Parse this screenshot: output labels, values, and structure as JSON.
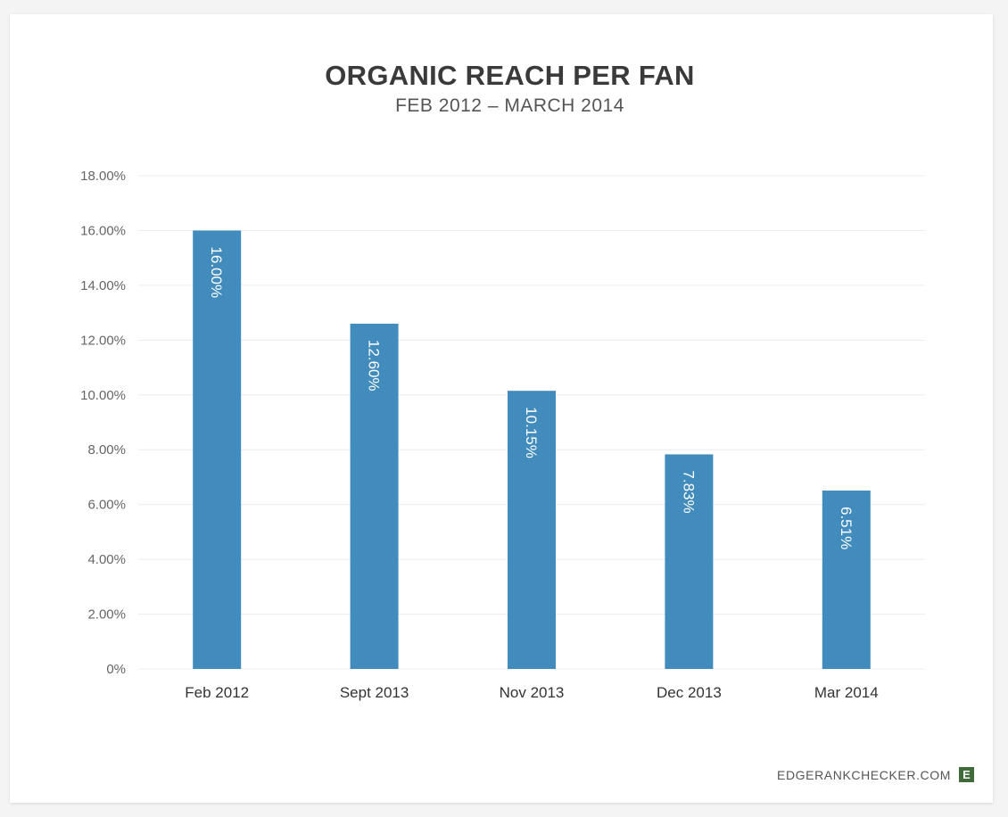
{
  "chart_data": {
    "type": "bar",
    "title": "ORGANIC REACH PER FAN",
    "subtitle": "FEB 2012 – MARCH 2014",
    "categories": [
      "Feb 2012",
      "Sept 2013",
      "Nov 2013",
      "Dec 2013",
      "Mar 2014"
    ],
    "values": [
      16.0,
      12.6,
      10.15,
      7.83,
      6.51
    ],
    "data_labels": [
      "16.00%",
      "12.60%",
      "10.15%",
      "7.83%",
      "6.51%"
    ],
    "ylim": [
      0,
      18
    ],
    "yticks": [
      0,
      2,
      4,
      6,
      8,
      10,
      12,
      14,
      16,
      18
    ],
    "ytick_labels": [
      "0%",
      "2.00%",
      "4.00%",
      "6.00%",
      "8.00%",
      "10.00%",
      "12.00%",
      "14.00%",
      "16.00%",
      "18.00%"
    ],
    "bar_color": "#418bbd",
    "grid": true,
    "legend": "none"
  },
  "footer": {
    "site": "EDGERANKCHECKER.COM",
    "logo_letter": "E",
    "logo_color": "#3f6b3a"
  }
}
